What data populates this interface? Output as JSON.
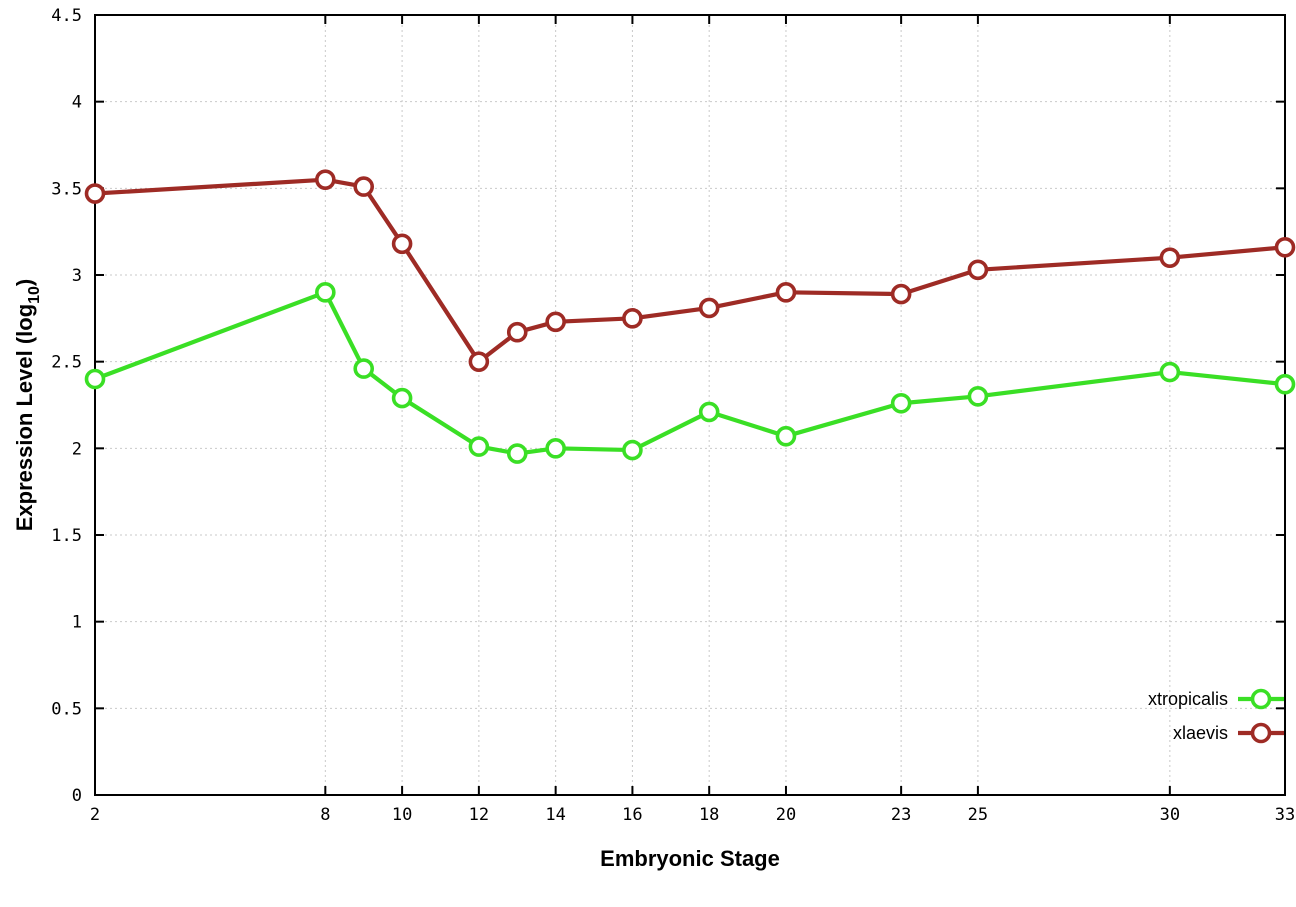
{
  "chart_data": {
    "type": "line",
    "title": "",
    "xlabel": "Embryonic Stage",
    "ylabel": "Expression Level (log10)",
    "ylabel_parts": {
      "pre": "Expression Level (log",
      "sub": "10",
      "post": ")"
    },
    "xlim": [
      2,
      33
    ],
    "ylim": [
      0,
      4.5
    ],
    "grid": true,
    "grid_color": "#c9c9c9",
    "axis_color": "#000000",
    "background_color": "#ffffff",
    "legend_position": "inside bottom-right",
    "xtick_values": [
      2,
      8,
      10,
      12,
      14,
      16,
      18,
      20,
      23,
      25,
      30,
      33
    ],
    "xtick_labels": [
      "2",
      "8",
      "10",
      "12",
      "14",
      "16",
      "18",
      "20",
      "23",
      "25",
      "30",
      "33"
    ],
    "ytick_values": [
      0,
      0.5,
      1,
      1.5,
      2,
      2.5,
      3,
      3.5,
      4,
      4.5
    ],
    "ytick_labels": [
      "0",
      "0.5",
      "1",
      "1.5",
      "2",
      "2.5",
      "3",
      "3.5",
      "4",
      "4.5"
    ],
    "x": [
      2,
      8,
      9,
      10,
      12,
      13,
      14,
      16,
      18,
      20,
      23,
      25,
      30,
      33
    ],
    "series": [
      {
        "name": "xtropicalis",
        "color": "#3adf25",
        "values": [
          2.4,
          2.9,
          2.46,
          2.29,
          2.01,
          1.97,
          2.0,
          1.99,
          2.21,
          2.07,
          2.26,
          2.3,
          2.44,
          2.37
        ]
      },
      {
        "name": "xlaevis",
        "color": "#9e2b25",
        "values": [
          3.47,
          3.55,
          3.51,
          3.18,
          2.5,
          2.67,
          2.73,
          2.75,
          2.81,
          2.9,
          2.89,
          3.03,
          3.1,
          3.16
        ]
      }
    ]
  }
}
